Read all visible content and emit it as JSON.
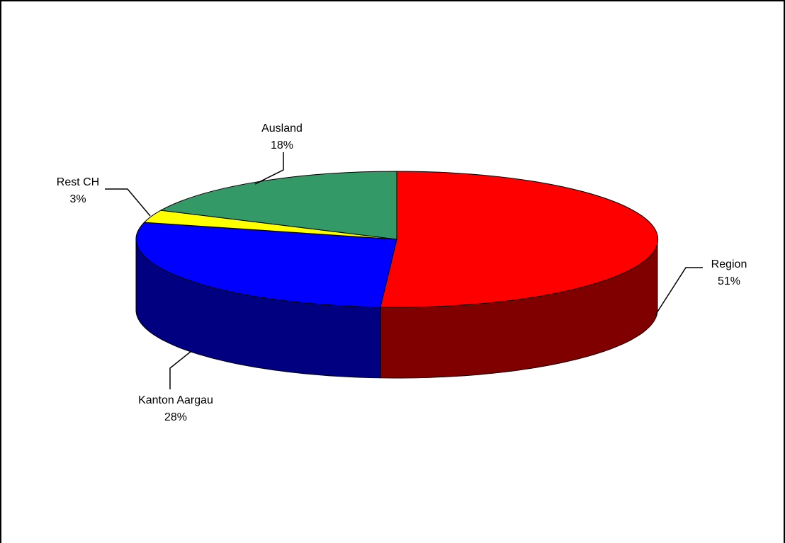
{
  "chart_data": {
    "type": "pie",
    "style": "3d-exploded-none",
    "title": "",
    "legend": "none",
    "slices": [
      {
        "label": "Region",
        "value": 51,
        "pct_label": "51%",
        "color": "#ff0000",
        "side_color": "#800000"
      },
      {
        "label": "Kanton Aargau",
        "value": 28,
        "pct_label": "28%",
        "color": "#0000ff",
        "side_color": "#000080"
      },
      {
        "label": "Rest CH",
        "value": 3,
        "pct_label": "3%",
        "color": "#ffff00",
        "side_color": "#808000"
      },
      {
        "label": "Ausland",
        "value": 18,
        "pct_label": "18%",
        "color": "#339966",
        "side_color": "#1a4d33"
      }
    ]
  }
}
